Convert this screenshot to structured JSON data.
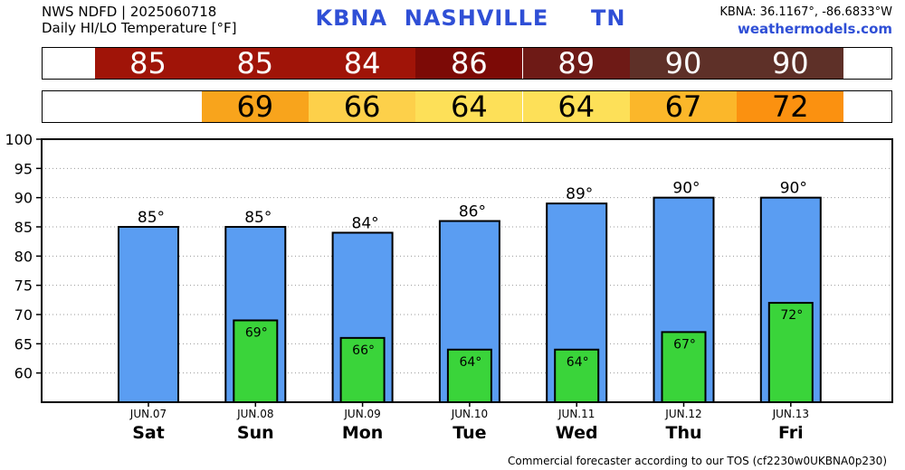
{
  "header": {
    "line1": "NWS NDFD | 2025060718",
    "line2": "Daily HI/LO Temperature [°F]",
    "station": "KBNA  NASHVILLE     TN",
    "coords": "KBNA: 36.1167°, -86.6833°W",
    "site": "weathermodels.com"
  },
  "footer": "Commercial forecaster according to our TOS (cf2230w0UKBNA0p230)",
  "hi_strip": [
    {
      "label": "85",
      "color": "#a01408"
    },
    {
      "label": "85",
      "color": "#a01408"
    },
    {
      "label": "84",
      "color": "#a01408"
    },
    {
      "label": "86",
      "color": "#7c0a06"
    },
    {
      "label": "89",
      "color": "#6e1a16"
    },
    {
      "label": "90",
      "color": "#5e3028"
    },
    {
      "label": "90",
      "color": "#5e3028"
    }
  ],
  "lo_strip": [
    {
      "label": "",
      "color": "#ffffff"
    },
    {
      "label": "69",
      "color": "#f8a41c"
    },
    {
      "label": "66",
      "color": "#fdd04a"
    },
    {
      "label": "64",
      "color": "#fde058"
    },
    {
      "label": "64",
      "color": "#fde058"
    },
    {
      "label": "67",
      "color": "#fbb72a"
    },
    {
      "label": "72",
      "color": "#fb9110"
    }
  ],
  "chart_data": {
    "type": "bar",
    "categories": [
      "JUN.07",
      "JUN.08",
      "JUN.09",
      "JUN.10",
      "JUN.11",
      "JUN.12",
      "JUN.13"
    ],
    "weekdays": [
      "Sat",
      "Sun",
      "Mon",
      "Tue",
      "Wed",
      "Thu",
      "Fri"
    ],
    "ylim": [
      55,
      100
    ],
    "yticks": [
      60,
      65,
      70,
      75,
      80,
      85,
      90,
      95,
      100
    ],
    "grid": "horizontal-dotted",
    "series": [
      {
        "values": [
          85,
          85,
          84,
          86,
          89,
          90,
          90
        ],
        "labels": [
          "85°",
          "85°",
          "84°",
          "86°",
          "89°",
          "90°",
          "90°"
        ],
        "color": "#5a9df2"
      },
      {
        "values": [
          null,
          69,
          66,
          64,
          64,
          67,
          72
        ],
        "labels": [
          "",
          "69°",
          "66°",
          "64°",
          "64°",
          "67°",
          "72°"
        ],
        "color": "#3ad43a"
      }
    ]
  }
}
